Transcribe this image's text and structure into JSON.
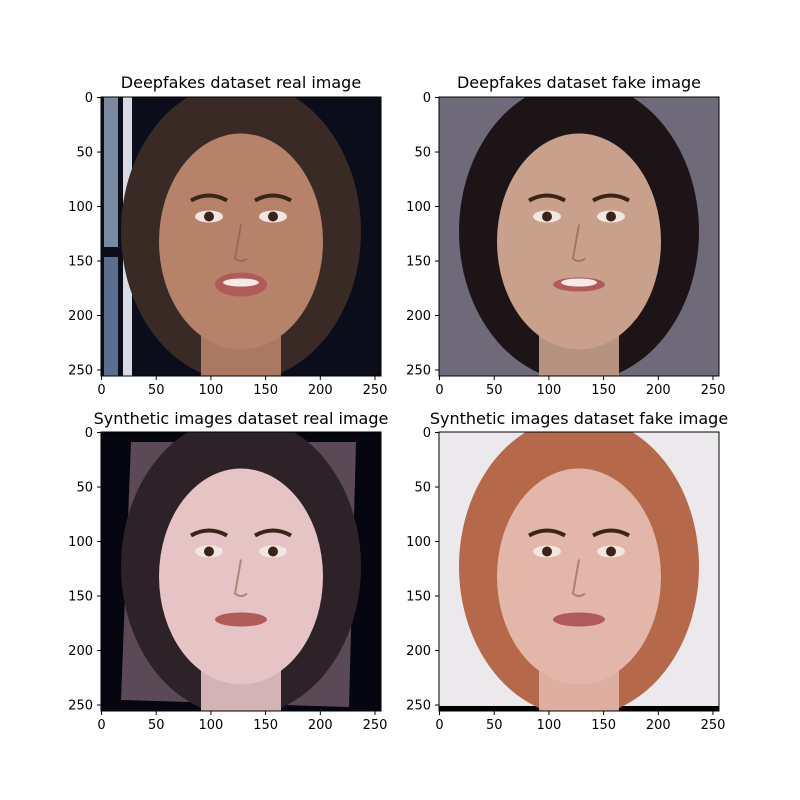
{
  "figure": {
    "panels": [
      {
        "title": "Deepfakes dataset real image",
        "image_label": "deepfakes-real-face",
        "background": "#0b0d1a",
        "skin": "#b7826a",
        "hair": "#3a2a26"
      },
      {
        "title": "Deepfakes dataset fake image",
        "image_label": "deepfakes-fake-face",
        "background": "#6f6a7a",
        "skin": "#c8a08c",
        "hair": "#1c1416"
      },
      {
        "title": "Synthetic images dataset real image",
        "image_label": "synthetic-real-face",
        "background": "#05060f",
        "skin": "#e6c3c4",
        "hair": "#2c2228"
      },
      {
        "title": "Synthetic images dataset fake image",
        "image_label": "synthetic-fake-face",
        "background": "#ece9ec",
        "skin": "#e2b6a8",
        "hair": "#b5694a"
      }
    ],
    "x_ticks": [
      "0",
      "50",
      "100",
      "150",
      "200",
      "250"
    ],
    "y_ticks": [
      "0",
      "50",
      "100",
      "150",
      "200",
      "250"
    ],
    "tick_values": [
      0,
      50,
      100,
      150,
      200,
      250
    ],
    "axis_max": 256
  }
}
